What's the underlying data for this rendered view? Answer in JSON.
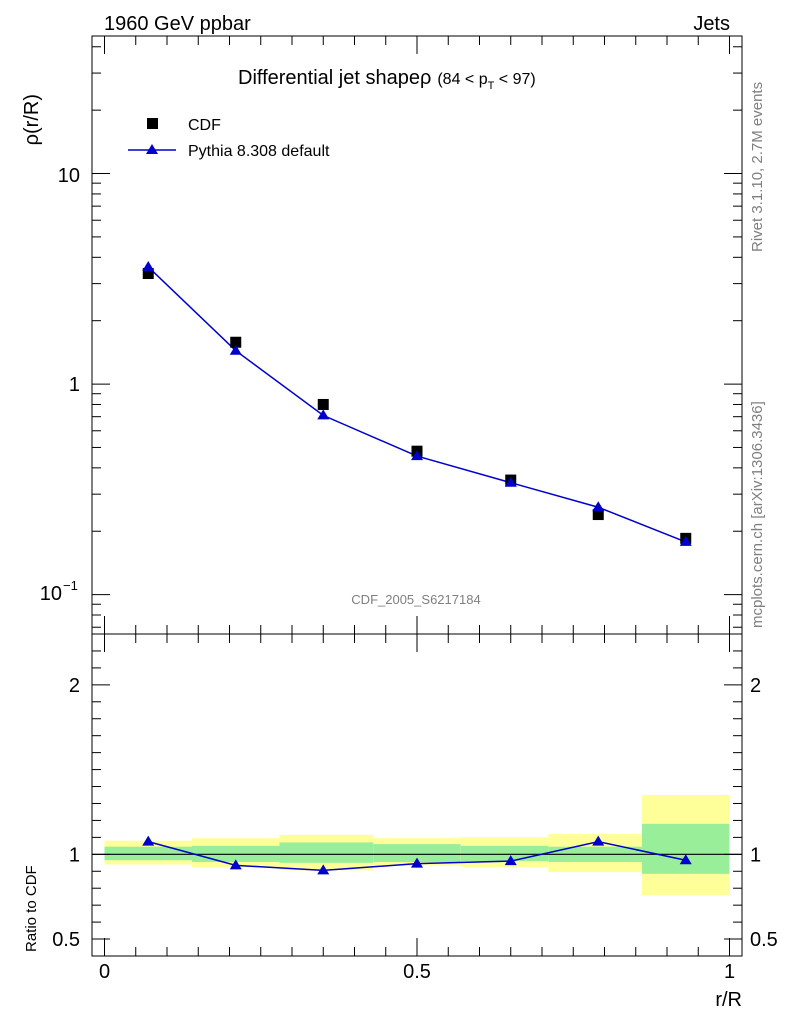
{
  "header": {
    "left": "1960 GeV ppbar",
    "right": "Jets"
  },
  "side_labels": {
    "rivet": "Rivet 3.1.10,  2.7M events",
    "mcplots": "mcplots.cern.ch [arXiv:1306.3436]"
  },
  "watermark": "CDF_2005_S6217184",
  "chart_data": [
    {
      "type": "scatter",
      "panel": "main",
      "title": "Differential jet shapeρ",
      "title_suffix": "(84 < p",
      "title_sub": "T",
      "title_end": " < 97)",
      "xlabel": "",
      "ylabel": "ρ(r/R)",
      "yscale": "log",
      "xlim": [
        -0.02,
        1.02
      ],
      "ylim": [
        0.065,
        45
      ],
      "ytick_labels": [
        "10",
        "1",
        "10"
      ],
      "ytick_exp": "−1",
      "x": [
        0.07,
        0.21,
        0.35,
        0.5,
        0.65,
        0.79,
        0.93
      ],
      "series": [
        {
          "name": "CDF",
          "marker": "square",
          "color": "#000000",
          "values": [
            3.35,
            1.58,
            0.8,
            0.48,
            0.35,
            0.24,
            0.185
          ]
        },
        {
          "name": "Pythia 8.308 default",
          "marker": "triangle",
          "color": "#0000cc",
          "values": [
            3.6,
            1.44,
            0.71,
            0.455,
            0.34,
            0.26,
            0.178
          ]
        }
      ],
      "legend": "top-left"
    },
    {
      "type": "line",
      "panel": "ratio",
      "xlabel": "r/R",
      "ylabel": "Ratio to CDF",
      "xlim": [
        -0.02,
        1.02
      ],
      "ylim": [
        0.4,
        2.3
      ],
      "ytick_labels": [
        "2",
        "1",
        "0.5"
      ],
      "xtick_labels": [
        "0",
        "0.5",
        "1"
      ],
      "bands": [
        {
          "x0": 0.0,
          "x1": 0.14,
          "yellow": [
            0.94,
            1.08
          ],
          "green": [
            0.965,
            1.045
          ]
        },
        {
          "x0": 0.14,
          "x1": 0.28,
          "yellow": [
            0.925,
            1.095
          ],
          "green": [
            0.955,
            1.05
          ]
        },
        {
          "x0": 0.28,
          "x1": 0.43,
          "yellow": [
            0.905,
            1.115
          ],
          "green": [
            0.95,
            1.07
          ]
        },
        {
          "x0": 0.43,
          "x1": 0.57,
          "yellow": [
            0.935,
            1.095
          ],
          "green": [
            0.955,
            1.06
          ]
        },
        {
          "x0": 0.57,
          "x1": 0.71,
          "yellow": [
            0.925,
            1.1
          ],
          "green": [
            0.96,
            1.05
          ]
        },
        {
          "x0": 0.71,
          "x1": 0.86,
          "yellow": [
            0.895,
            1.12
          ],
          "green": [
            0.955,
            1.045
          ]
        },
        {
          "x0": 0.86,
          "x1": 1.0,
          "yellow": [
            0.76,
            1.35
          ],
          "green": [
            0.885,
            1.18
          ]
        }
      ],
      "x": [
        0.07,
        0.21,
        0.35,
        0.5,
        0.65,
        0.79,
        0.93
      ],
      "series": [
        {
          "name": "Pythia 8.308 default",
          "color": "#0000cc",
          "values": [
            1.075,
            0.935,
            0.905,
            0.945,
            0.96,
            1.075,
            0.965
          ]
        }
      ]
    }
  ]
}
